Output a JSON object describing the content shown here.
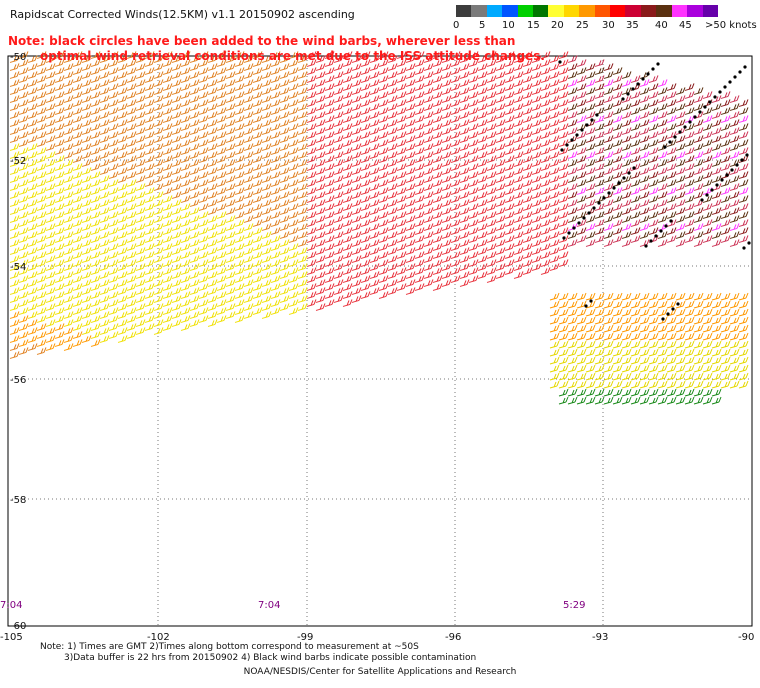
{
  "title": "Rapidscat Corrected Winds(12.5KM) v1.1 20150902 ascending",
  "note_line1": "Note: black circles have been added to the wind barbs, wherever less than",
  "note_line2": "optimal wind retrieval conditions are met due to the ISS attitude changes.",
  "legend": {
    "labels": [
      "0",
      "5",
      "10",
      "15",
      "20",
      "25",
      "30",
      "35",
      "40",
      "45",
      ">50 knots"
    ],
    "colors": [
      "#3c3c3c",
      "#7a7a7a",
      "#00aaff",
      "#0055ff",
      "#00d000",
      "#007700",
      "#ffff33",
      "#ffd700",
      "#ff9900",
      "#ff5500",
      "#ff0000",
      "#cc0033",
      "#8a1a1a",
      "#5a3010",
      "#ff33ff",
      "#aa00dd",
      "#6600aa"
    ]
  },
  "map": {
    "lon_ticks": [
      "-105",
      "-102",
      "-99",
      "-96",
      "-93",
      "-90"
    ],
    "lat_ticks": [
      "-50",
      "-52",
      "-54",
      "-56",
      "-58",
      "-60"
    ],
    "times": [
      "7:04",
      "7:04",
      "5:29"
    ]
  },
  "footnotes": {
    "line1": "Note: 1) Times are GMT 2)Times along bottom correspond to measurement at ~50S",
    "line2": "3)Data buffer is 22 hrs from 20150902 4) Black wind barbs indicate possible contamination"
  },
  "credit": "NOAA/NESDIS/Center for Satellite Applications and Research"
}
